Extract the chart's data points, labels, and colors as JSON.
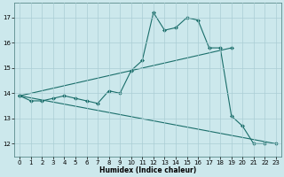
{
  "xlabel": "Humidex (Indice chaleur)",
  "bg_color": "#cce8ec",
  "grid_color": "#aacdd4",
  "line_color": "#1a6e6a",
  "series_main": {
    "x": [
      0,
      1,
      2,
      3,
      4,
      5,
      6,
      7,
      8,
      9,
      10,
      11,
      12,
      13,
      14,
      15,
      16,
      17,
      18,
      19,
      20,
      21,
      22
    ],
    "y": [
      13.9,
      13.7,
      13.7,
      13.8,
      13.9,
      13.8,
      13.7,
      13.6,
      14.1,
      14.0,
      14.9,
      15.3,
      17.2,
      16.5,
      16.6,
      17.0,
      16.9,
      15.8,
      15.8,
      13.1,
      12.7,
      12.0,
      12.0
    ]
  },
  "series_lower": {
    "x": [
      0,
      23
    ],
    "y": [
      13.9,
      12.0
    ]
  },
  "series_upper": {
    "x": [
      0,
      19
    ],
    "y": [
      13.9,
      15.8
    ]
  },
  "ylim": [
    11.5,
    17.6
  ],
  "xlim": [
    -0.5,
    23.5
  ],
  "yticks": [
    12,
    13,
    14,
    15,
    16,
    17
  ],
  "xticks": [
    0,
    1,
    2,
    3,
    4,
    5,
    6,
    7,
    8,
    9,
    10,
    11,
    12,
    13,
    14,
    15,
    16,
    17,
    18,
    19,
    20,
    21,
    22,
    23
  ],
  "marker": "D",
  "markersize": 2,
  "linewidth": 0.8,
  "tick_fontsize": 5,
  "xlabel_fontsize": 5.5
}
